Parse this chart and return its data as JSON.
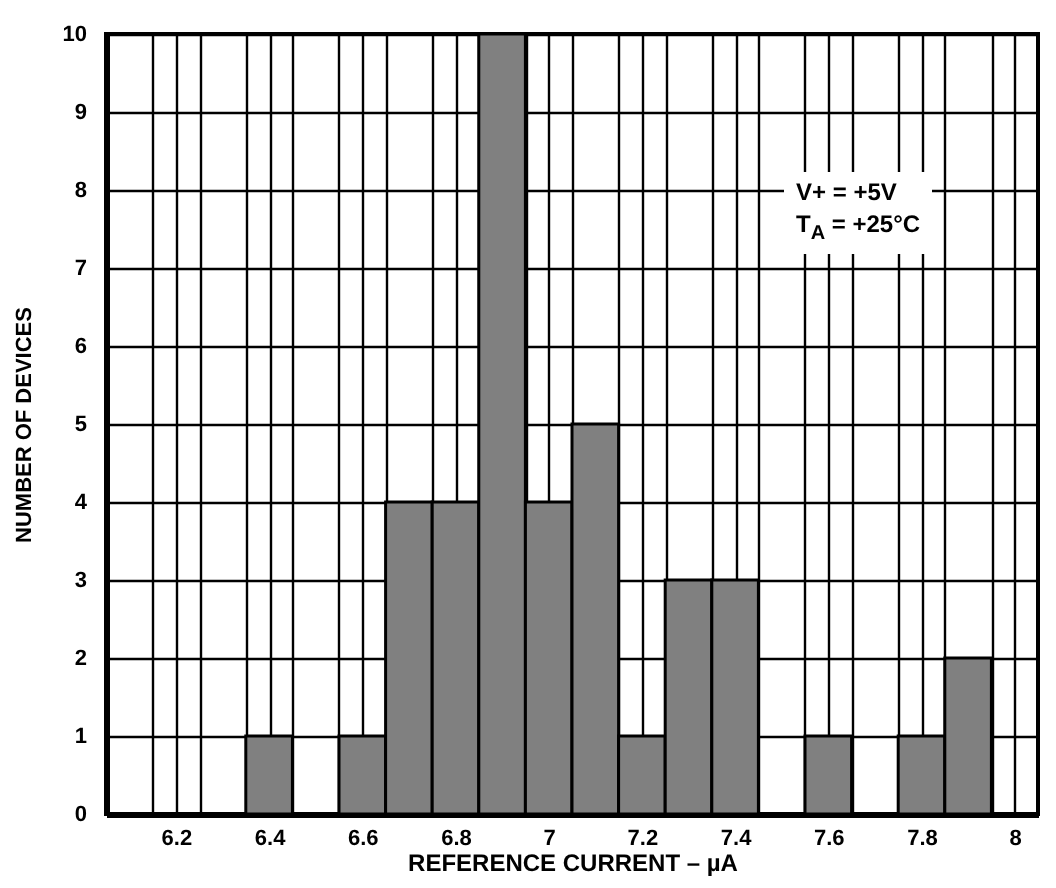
{
  "chart_data": {
    "type": "histogram",
    "xlabel": "REFERENCE CURRENT – µA",
    "ylabel": "NUMBER OF DEVICES",
    "bins": [
      6.05,
      6.15,
      6.25,
      6.35,
      6.45,
      6.55,
      6.65,
      6.75,
      6.85,
      6.95,
      7.05,
      7.15,
      7.25,
      7.35,
      7.45,
      7.55,
      7.65,
      7.75,
      7.85,
      7.95,
      8.05
    ],
    "values": [
      0,
      0,
      0,
      1,
      0,
      1,
      4,
      4,
      10,
      4,
      5,
      1,
      3,
      3,
      0,
      1,
      0,
      1,
      2,
      0
    ],
    "color": "#808080",
    "xlim": [
      6.05,
      8.05
    ],
    "xticks": [
      {
        "value": 6.15,
        "label": null
      },
      6.2,
      {
        "value": 6.25,
        "label": null
      },
      {
        "value": 6.35,
        "label": null
      },
      6.4,
      {
        "value": 6.45,
        "label": null
      },
      {
        "value": 6.55,
        "label": null
      },
      6.6,
      {
        "value": 6.65,
        "label": null
      },
      {
        "value": 6.75,
        "label": null
      },
      6.8,
      {
        "value": 6.85,
        "label": null
      },
      {
        "value": 6.95,
        "label": null
      },
      7,
      {
        "value": 7.05,
        "label": null
      },
      {
        "value": 7.15,
        "label": null
      },
      7.2,
      {
        "value": 7.25,
        "label": null
      },
      {
        "value": 7.35,
        "label": null
      },
      7.4,
      {
        "value": 7.45,
        "label": null
      },
      {
        "value": 7.55,
        "label": null
      },
      7.6,
      {
        "value": 7.65,
        "label": null
      },
      {
        "value": 7.75,
        "label": null
      },
      7.8,
      {
        "value": 7.85,
        "label": null
      },
      {
        "value": 7.95,
        "label": null
      },
      8
    ],
    "ylim": [
      0,
      10
    ],
    "yticks": [
      0,
      1,
      2,
      3,
      4,
      5,
      6,
      7,
      8,
      9,
      10
    ],
    "grid": true,
    "annotations": [
      "V+ = +5V",
      "T$_{A}$ = +25°C"
    ]
  }
}
